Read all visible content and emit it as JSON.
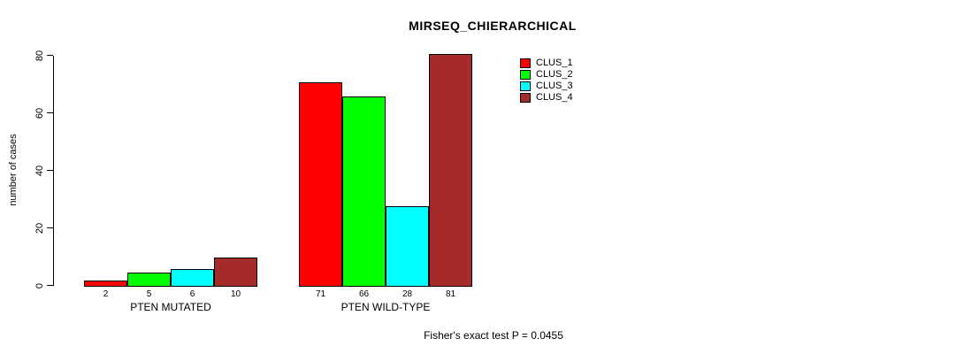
{
  "chart_data": {
    "type": "bar",
    "title": "MIRSEQ_CHIERARCHICAL",
    "ylabel": "number of cases",
    "ylim": [
      0,
      80
    ],
    "yticks": [
      0,
      20,
      40,
      60,
      80
    ],
    "categories": [
      "PTEN MUTATED",
      "PTEN WILD-TYPE"
    ],
    "series": [
      {
        "name": "CLUS_1",
        "color": "#ff0000",
        "values": [
          2,
          71
        ]
      },
      {
        "name": "CLUS_2",
        "color": "#00ff00",
        "values": [
          5,
          66
        ]
      },
      {
        "name": "CLUS_3",
        "color": "#00ffff",
        "values": [
          6,
          28
        ]
      },
      {
        "name": "CLUS_4",
        "color": "#a52a2a",
        "values": [
          10,
          81
        ]
      }
    ],
    "bar_value_labels": [
      [
        "2",
        "5",
        "6",
        "10"
      ],
      [
        "71",
        "66",
        "28",
        "81"
      ]
    ],
    "legend_position": "top-right",
    "grid": false,
    "footnote": "Fisher's exact test P = 0.0455"
  }
}
